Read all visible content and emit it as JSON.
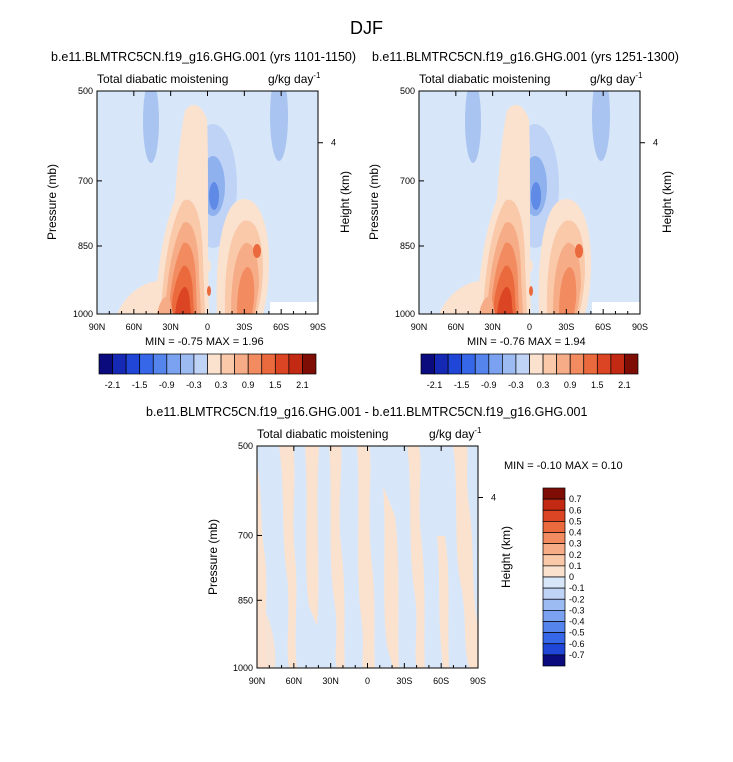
{
  "title": "DJF",
  "panels": [
    {
      "id": "p1",
      "title": "b.e11.BLMTRC5CN.f19_g16.GHG.001 (yrs 1101-1150)",
      "left_label": "Total diabatic moistening",
      "units_label": "g/kg day",
      "units_exp": "-1",
      "ylabel": "Pressure (mb)",
      "ylabel_right": "Height (km)",
      "stats": "MIN =  -0.75   MAX =   1.96"
    },
    {
      "id": "p2",
      "title": "b.e11.BLMTRC5CN.f19_g16.GHG.001 (yrs 1251-1300)",
      "left_label": "Total diabatic moistening",
      "units_label": "g/kg day",
      "units_exp": "-1",
      "ylabel": "Pressure (mb)",
      "ylabel_right": "Height (km)",
      "stats": "MIN =  -0.76   MAX =   1.94"
    },
    {
      "id": "p3",
      "title": "b.e11.BLMTRC5CN.f19_g16.GHG.001 - b.e11.BLMTRC5CN.f19_g16.GHG.001",
      "left_label": "Total diabatic moistening",
      "units_label": "g/kg day",
      "units_exp": "-1",
      "ylabel": "Pressure (mb)",
      "ylabel_right": "Height (km)",
      "stats": "MIN =  -0.10   MAX =   0.10"
    }
  ],
  "chart_data": {
    "type": "heatmap",
    "x_ticks": [
      "90N",
      "60N",
      "30N",
      "0",
      "30S",
      "60S",
      "90S"
    ],
    "y_ticks": [
      "500",
      "700",
      "850",
      "1000"
    ],
    "y_ticks_right": [
      "4"
    ],
    "colorbar_top": {
      "labels": [
        "-2.1",
        "-1.5",
        "-0.9",
        "-0.3",
        "0.3",
        "0.9",
        "1.5",
        "2.1"
      ],
      "colors": [
        "#0b0b7d",
        "#1529b5",
        "#1f46d6",
        "#3567e8",
        "#5585ec",
        "#7aa2f0",
        "#9cbbf2",
        "#bfd3f6",
        "#fbe2cf",
        "#f9c9aa",
        "#f6ad87",
        "#f28b60",
        "#ea6a3e",
        "#dc4523",
        "#c22a13",
        "#7e0d06"
      ]
    },
    "colorbar_diff": {
      "labels": [
        "0.7",
        "0.6",
        "0.5",
        "0.4",
        "0.3",
        "0.2",
        "0.1",
        "0",
        "-0.1",
        "-0.2",
        "-0.3",
        "-0.4",
        "-0.5",
        "-0.6",
        "-0.7"
      ],
      "colors": [
        "#7e0d06",
        "#c22a13",
        "#dc4523",
        "#ea6a3e",
        "#f28b60",
        "#f6ad87",
        "#f9c9aa",
        "#fbe2cf",
        "#d7e7f9",
        "#bfd3f6",
        "#9cbbf2",
        "#7aa2f0",
        "#5585ec",
        "#3567e8",
        "#1f46d6",
        "#0b0b7d"
      ]
    }
  }
}
